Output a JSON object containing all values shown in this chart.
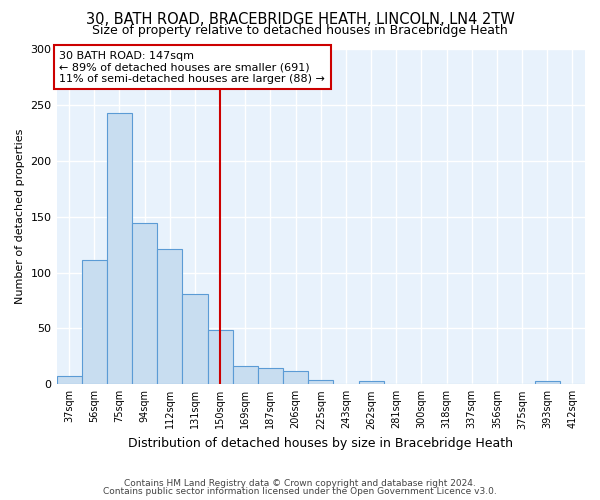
{
  "title1": "30, BATH ROAD, BRACEBRIDGE HEATH, LINCOLN, LN4 2TW",
  "title2": "Size of property relative to detached houses in Bracebridge Heath",
  "xlabel": "Distribution of detached houses by size in Bracebridge Heath",
  "ylabel": "Number of detached properties",
  "footnote1": "Contains HM Land Registry data © Crown copyright and database right 2024.",
  "footnote2": "Contains public sector information licensed under the Open Government Licence v3.0.",
  "annotation_line1": "30 BATH ROAD: 147sqm",
  "annotation_line2": "← 89% of detached houses are smaller (691)",
  "annotation_line3": "11% of semi-detached houses are larger (88) →",
  "vline_x": 6,
  "bar_color": "#c8ddf0",
  "bar_edge_color": "#5b9bd5",
  "vline_color": "#cc0000",
  "categories": [
    "37sqm",
    "56sqm",
    "75sqm",
    "94sqm",
    "112sqm",
    "131sqm",
    "150sqm",
    "169sqm",
    "187sqm",
    "206sqm",
    "225sqm",
    "243sqm",
    "262sqm",
    "281sqm",
    "300sqm",
    "318sqm",
    "337sqm",
    "356sqm",
    "375sqm",
    "393sqm",
    "412sqm"
  ],
  "values": [
    7,
    111,
    243,
    144,
    121,
    81,
    49,
    16,
    15,
    12,
    4,
    0,
    3,
    0,
    0,
    0,
    0,
    0,
    0,
    3,
    0
  ],
  "ylim": [
    0,
    300
  ],
  "yticks": [
    0,
    50,
    100,
    150,
    200,
    250,
    300
  ],
  "fig_background": "#ffffff",
  "plot_background": "#e8f2fc",
  "grid_color": "#ffffff",
  "title1_fontsize": 10.5,
  "title2_fontsize": 9,
  "annotation_box_color": "#ffffff",
  "annotation_box_edge": "#cc0000",
  "annotation_fontsize": 8
}
